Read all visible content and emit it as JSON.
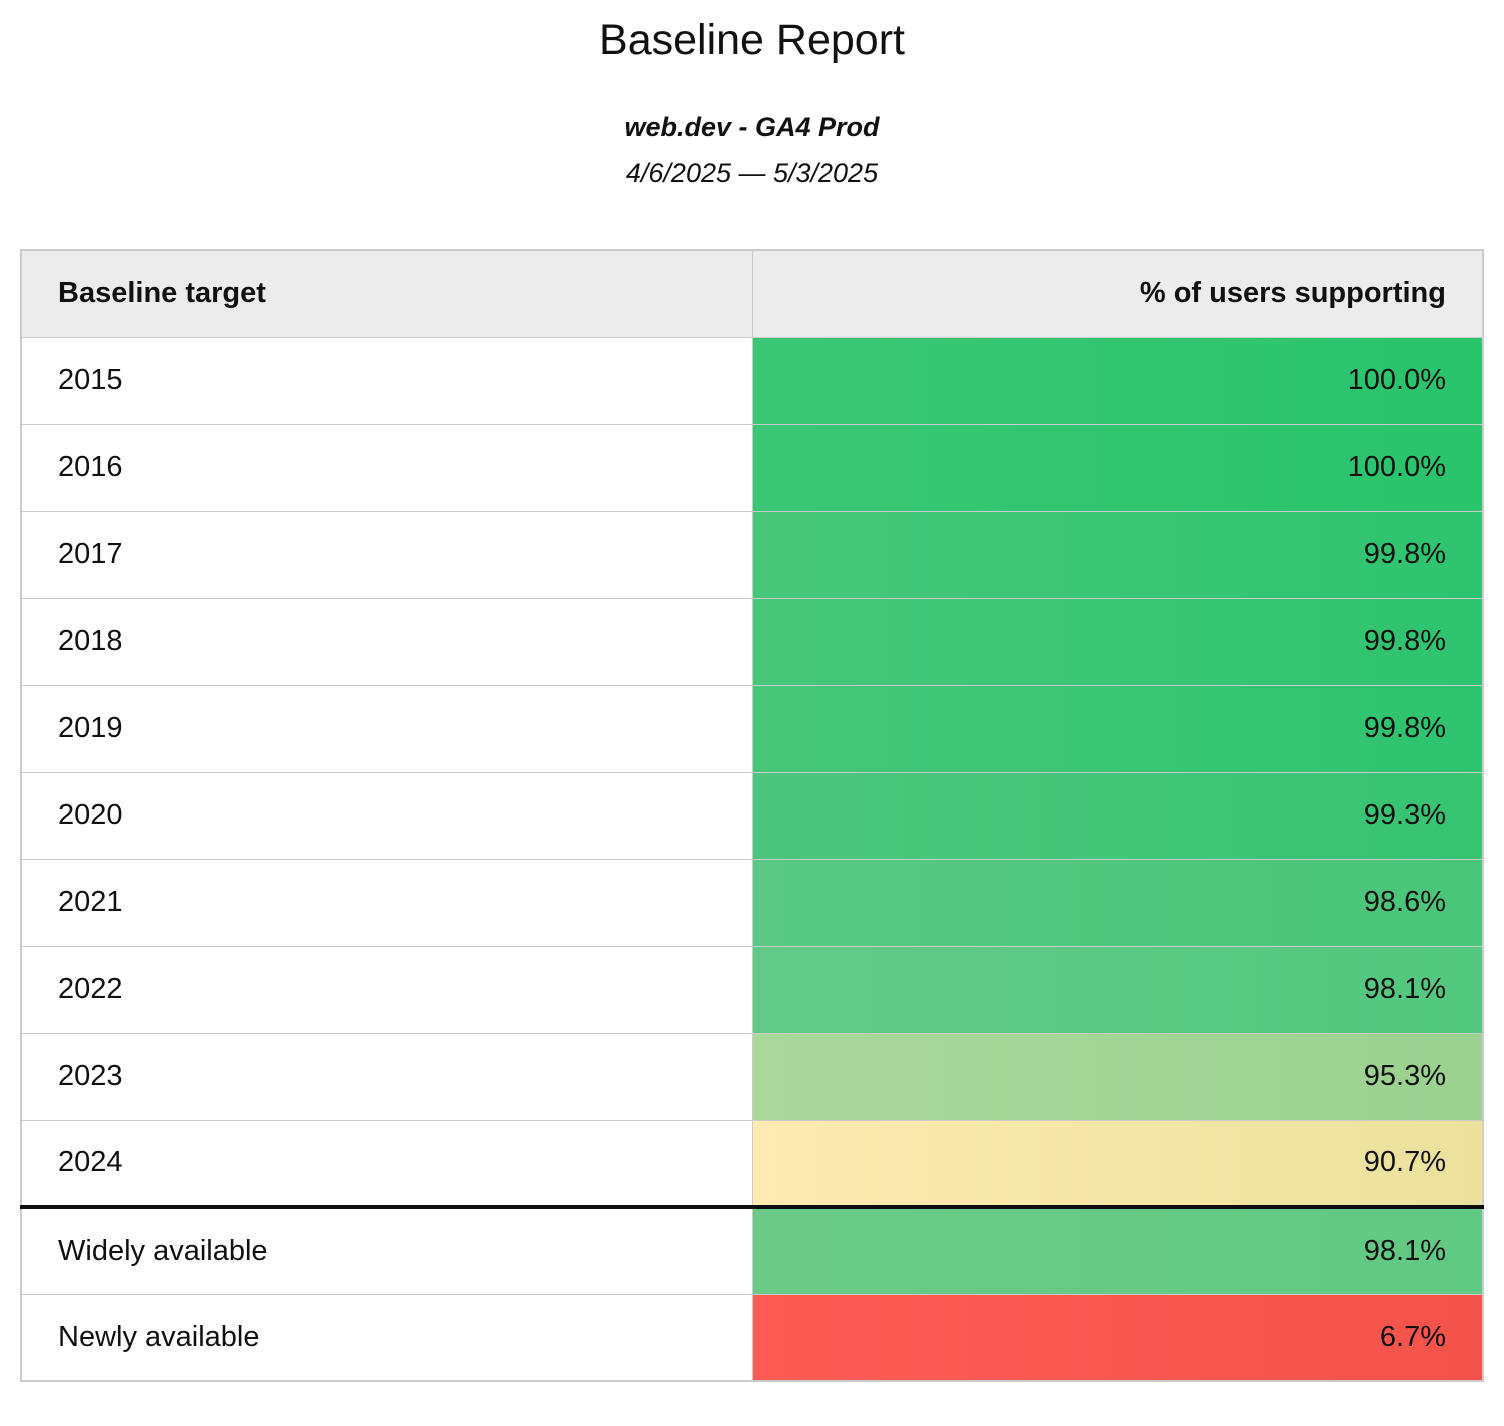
{
  "report": {
    "title": "Baseline Report",
    "subtitle": "web.dev - GA4 Prod",
    "date_range": "4/6/2025 — 5/3/2025"
  },
  "table": {
    "columns": [
      "Baseline target",
      "% of users supporting"
    ],
    "rows": [
      {
        "label": "2015",
        "value": "100.0%",
        "bg": [
          "#3bc675",
          "#29c46c"
        ],
        "section_start": false
      },
      {
        "label": "2016",
        "value": "100.0%",
        "bg": [
          "#3bc675",
          "#29c46c"
        ],
        "section_start": false
      },
      {
        "label": "2017",
        "value": "99.8%",
        "bg": [
          "#46c77a",
          "#2dc46f"
        ],
        "section_start": false
      },
      {
        "label": "2018",
        "value": "99.8%",
        "bg": [
          "#46c77a",
          "#2dc46f"
        ],
        "section_start": false
      },
      {
        "label": "2019",
        "value": "99.8%",
        "bg": [
          "#46c77a",
          "#2dc46f"
        ],
        "section_start": false
      },
      {
        "label": "2020",
        "value": "99.3%",
        "bg": [
          "#4cc67d",
          "#36c471"
        ],
        "section_start": false
      },
      {
        "label": "2021",
        "value": "98.6%",
        "bg": [
          "#58c883",
          "#49c679"
        ],
        "section_start": false
      },
      {
        "label": "2022",
        "value": "98.1%",
        "bg": [
          "#62ca88",
          "#52c87e"
        ],
        "section_start": false
      },
      {
        "label": "2023",
        "value": "95.3%",
        "bg": [
          "#aad79a",
          "#9bd290"
        ],
        "section_start": false
      },
      {
        "label": "2024",
        "value": "90.7%",
        "bg": [
          "#fdebb2",
          "#ebe19c"
        ],
        "section_start": false
      },
      {
        "label": "Widely available",
        "value": "98.1%",
        "bg": [
          "#6cca88",
          "#60c983"
        ],
        "section_start": true
      },
      {
        "label": "Newly available",
        "value": "6.7%",
        "bg": [
          "#fe5b55",
          "#f3534b"
        ],
        "section_start": false
      }
    ]
  },
  "chart_data": {
    "type": "table",
    "title": "Baseline Report",
    "subtitle": "web.dev - GA4 Prod",
    "date_range": "4/6/2025 — 5/3/2025",
    "columns": [
      "Baseline target",
      "% of users supporting"
    ],
    "categories": [
      "2015",
      "2016",
      "2017",
      "2018",
      "2019",
      "2020",
      "2021",
      "2022",
      "2023",
      "2024",
      "Widely available",
      "Newly available"
    ],
    "values": [
      100.0,
      100.0,
      99.8,
      99.8,
      99.8,
      99.3,
      98.6,
      98.1,
      95.3,
      90.7,
      98.1,
      6.7
    ],
    "value_unit": "%",
    "color_scale": "green-yellow-red heatmap on value column, per-row horizontal gradient",
    "notes": "Thick black rule separates year rows (2015-2024) from summary rows (Widely available, Newly available)"
  }
}
